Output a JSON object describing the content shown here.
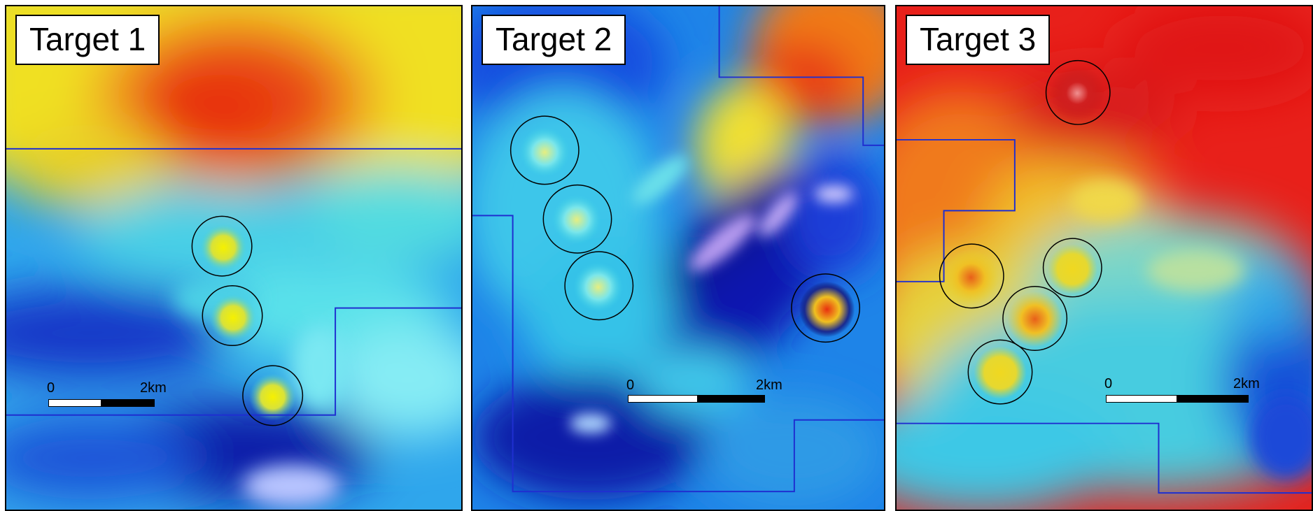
{
  "panels": [
    {
      "title": "Target 1",
      "scale": {
        "start": "0",
        "end": "2km"
      }
    },
    {
      "title": "Target 2",
      "scale": {
        "start": "0",
        "end": "2km"
      }
    },
    {
      "title": "Target 3",
      "scale": {
        "start": "0",
        "end": "2km"
      }
    }
  ],
  "colors": {
    "boundary_line": "#1f2fd0",
    "target_circle": "#000000",
    "high": "#e8200f",
    "mid": "#f2e21a",
    "low": "#22d6e6",
    "very_low": "#0a1fb0"
  }
}
